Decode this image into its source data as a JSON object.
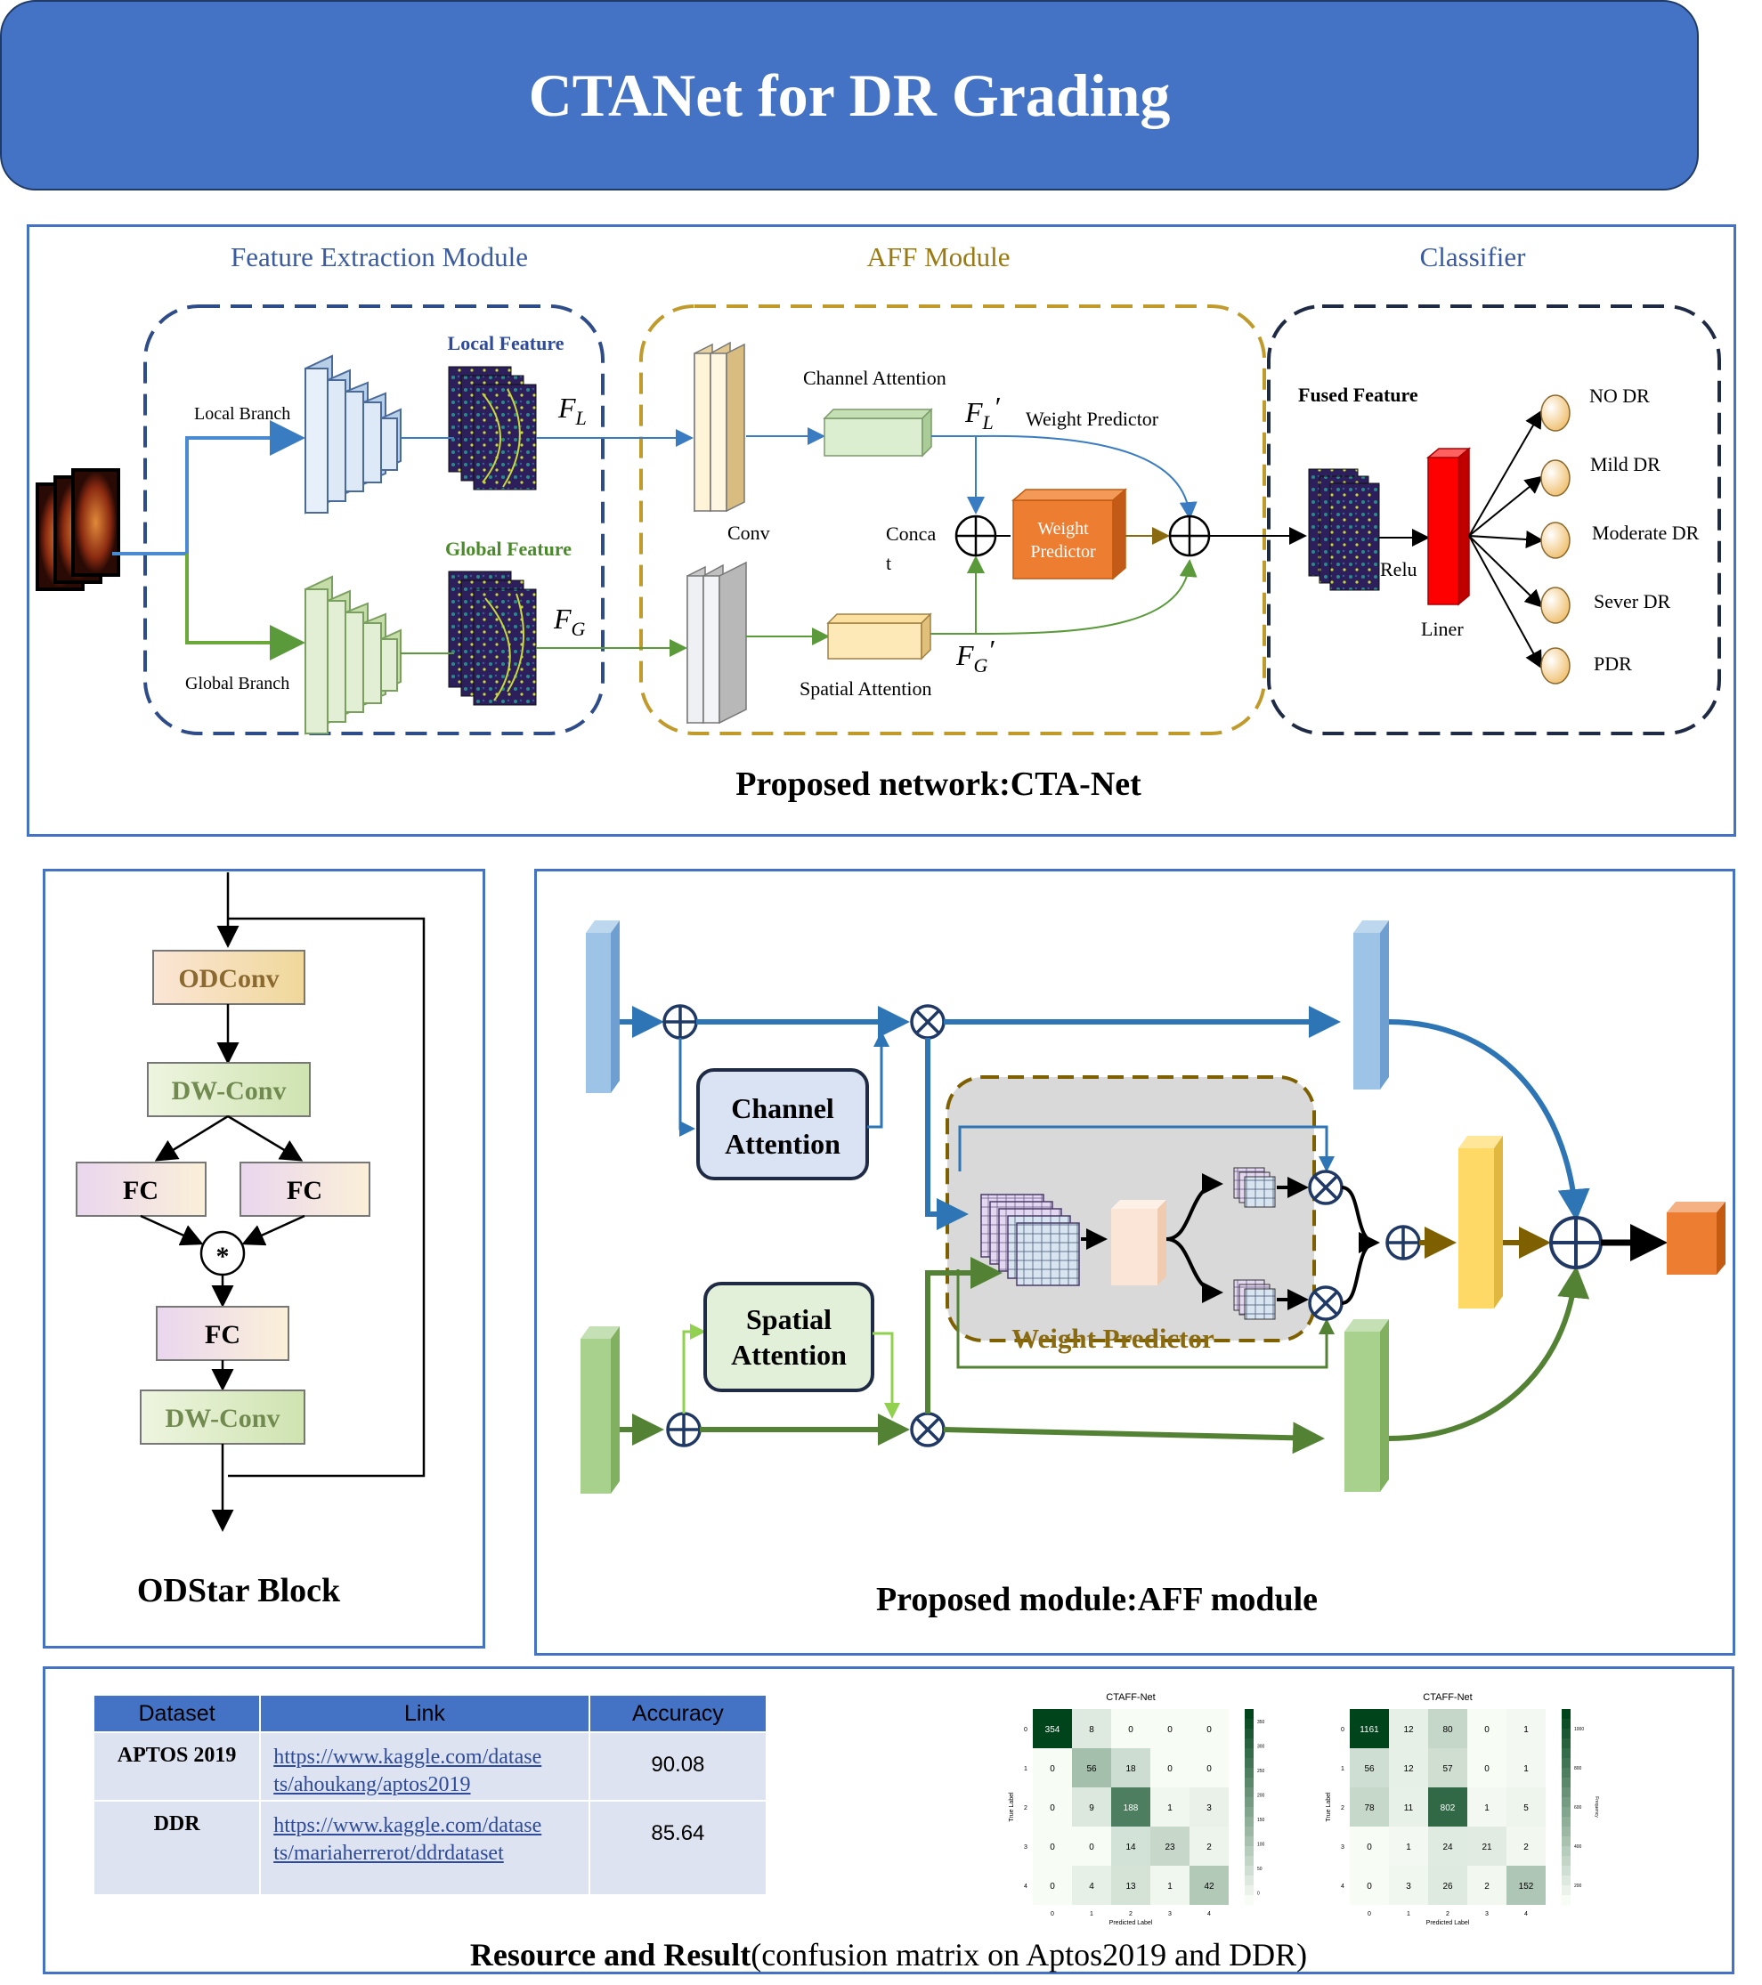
{
  "title": "CTANet for DR Grading",
  "network": {
    "caption": "Proposed network:CTA-Net",
    "feature_extraction": {
      "header": "Feature Extraction Module",
      "local_branch": "Local Branch",
      "global_branch": "Global Branch",
      "local_feature": "Local Feature",
      "global_feature": "Global Feature",
      "fl": "F",
      "fl_sub": "L",
      "fg": "F",
      "fg_sub": "G"
    },
    "aff": {
      "header": "AFF Module",
      "channel_attention": "Channel Attention",
      "spatial_attention": "Spatial Attention",
      "conv": "Conv",
      "concat_line1": "Conca",
      "concat_line2": "t",
      "weight_predictor": "Weight Predictor",
      "wp_box_line1": "Weight",
      "wp_box_line2": "Predictor",
      "fl_prime": "F",
      "fl_prime_sub": "L",
      "fg_prime": "F",
      "fg_prime_sub": "G",
      "prime": "′"
    },
    "classifier": {
      "header": "Classifier",
      "fused_feature": "Fused Feature",
      "relu": "Relu",
      "liner": "Liner",
      "classes": [
        "NO DR",
        "Mild DR",
        "Moderate DR",
        "Sever DR",
        "PDR"
      ]
    }
  },
  "odstar": {
    "caption": "ODStar Block",
    "odconv": "ODConv",
    "dwconv1": "DW-Conv",
    "fc_left": "FC",
    "fc_right": "FC",
    "star": "*",
    "fc_mid": "FC",
    "dwconv2": "DW-Conv"
  },
  "aff_module": {
    "caption": "Proposed module:AFF module",
    "channel_line1": "Channel",
    "channel_line2": "Attention",
    "spatial_line1": "Spatial",
    "spatial_line2": "Attention",
    "weight_predictor": "Weight Predictor"
  },
  "resources": {
    "caption_bold": "Resource and Result",
    "caption_rest": "(confusion matrix on Aptos2019 and DDR)",
    "table": {
      "headers": [
        "Dataset",
        "Link",
        "Accuracy"
      ],
      "rows": [
        {
          "dataset": "APTOS 2019",
          "link_line1": "https://www.kaggle.com/datase",
          "link_line2": "ts/ahoukang/aptos2019",
          "accuracy": "90.08"
        },
        {
          "dataset": "DDR",
          "link_line1": "https://www.kaggle.com/datase",
          "link_line2": "ts/mariaherrerot/ddrdataset",
          "accuracy": "85.64"
        }
      ]
    }
  },
  "chart_data": [
    {
      "type": "heatmap",
      "title": "CTAFF-Net",
      "xlabel": "Predicted Label",
      "ylabel": "True Label",
      "colorbar_label": "Frequency",
      "x": [
        "0",
        "1",
        "2",
        "3",
        "4"
      ],
      "y": [
        "0",
        "1",
        "2",
        "3",
        "4"
      ],
      "colorbar_ticks": [
        "350",
        "300",
        "250",
        "200",
        "150",
        "100",
        "50",
        "0"
      ],
      "values": [
        [
          354,
          8,
          0,
          0,
          0
        ],
        [
          0,
          56,
          18,
          0,
          0
        ],
        [
          0,
          9,
          188,
          1,
          3
        ],
        [
          0,
          0,
          14,
          23,
          2
        ],
        [
          0,
          4,
          13,
          1,
          42
        ]
      ]
    },
    {
      "type": "heatmap",
      "title": "CTAFF-Net",
      "xlabel": "Predicted Label",
      "ylabel": "True Label",
      "colorbar_label": "Frequency",
      "x": [
        "0",
        "1",
        "2",
        "3",
        "4"
      ],
      "y": [
        "0",
        "1",
        "2",
        "3",
        "4"
      ],
      "colorbar_ticks": [
        "1000",
        "800",
        "600",
        "400",
        "200"
      ],
      "values": [
        [
          1161,
          12,
          80,
          0,
          1
        ],
        [
          56,
          12,
          57,
          0,
          1
        ],
        [
          78,
          11,
          802,
          1,
          5
        ],
        [
          0,
          1,
          24,
          21,
          2
        ],
        [
          0,
          3,
          26,
          2,
          152
        ]
      ]
    }
  ]
}
